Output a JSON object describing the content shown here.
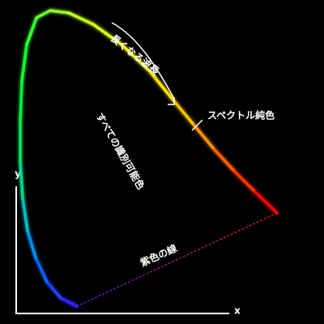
{
  "labels": {
    "wavelength": "長くなる波長",
    "spectral": "スペクトル純色",
    "visible": "すべての識別可能色",
    "purple_line": "紫色の線"
  },
  "axes": {
    "x": "x",
    "y": "y"
  }
}
